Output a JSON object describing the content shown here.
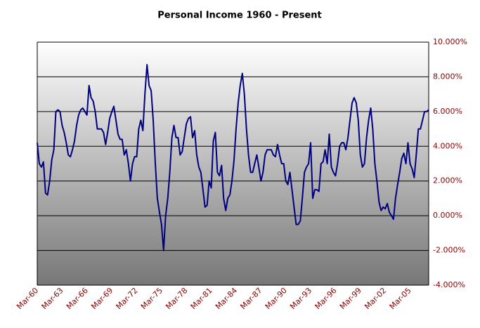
{
  "chart_data": {
    "type": "line",
    "title": "Personal Income 1960 - Present",
    "categories": [
      "Mar-60",
      null,
      null,
      null,
      null,
      null,
      null,
      null,
      null,
      null,
      null,
      null,
      "Mar-63",
      null,
      null,
      null,
      null,
      null,
      null,
      null,
      null,
      null,
      null,
      null,
      "Mar-66",
      null,
      null,
      null,
      null,
      null,
      null,
      null,
      null,
      null,
      null,
      null,
      "Mar-69",
      null,
      null,
      null,
      null,
      null,
      null,
      null,
      null,
      null,
      null,
      null,
      "Mar-72",
      null,
      null,
      null,
      null,
      null,
      null,
      null,
      null,
      null,
      null,
      null,
      "Mar-75",
      null,
      null,
      null,
      null,
      null,
      null,
      null,
      null,
      null,
      null,
      null,
      "Mar-78",
      null,
      null,
      null,
      null,
      null,
      null,
      null,
      null,
      null,
      null,
      null,
      "Mar-81",
      null,
      null,
      null,
      null,
      null,
      null,
      null,
      null,
      null,
      null,
      null,
      "Mar-84",
      null,
      null,
      null,
      null,
      null,
      null,
      null,
      null,
      null,
      null,
      null,
      "Mar-87",
      null,
      null,
      null,
      null,
      null,
      null,
      null,
      null,
      null,
      null,
      null,
      "Mar-90",
      null,
      null,
      null,
      null,
      null,
      null,
      null,
      null,
      null,
      null,
      null,
      "Mar-93",
      null,
      null,
      null,
      null,
      null,
      null,
      null,
      null,
      null,
      null,
      null,
      "Mar-96",
      null,
      null,
      null,
      null,
      null,
      null,
      null,
      null,
      null,
      null,
      null,
      "Mar-99",
      null,
      null,
      null,
      null,
      null,
      null,
      null,
      null,
      null,
      null,
      null,
      "Mar-02",
      null,
      null,
      null,
      null,
      null,
      null,
      null,
      null,
      null,
      null,
      null,
      "Mar-05",
      null,
      null,
      null,
      null,
      null,
      null,
      null,
      null,
      null
    ],
    "series": [
      {
        "color": "#000080",
        "values": [
          4.2,
          3.0,
          2.8,
          3.1,
          1.3,
          1.2,
          2.0,
          3.2,
          3.8,
          6.0,
          6.1,
          6.0,
          5.2,
          4.8,
          4.2,
          3.5,
          3.4,
          3.8,
          4.3,
          5.2,
          5.8,
          6.1,
          6.2,
          6.0,
          5.8,
          7.5,
          6.8,
          6.6,
          6.0,
          5.0,
          5.0,
          5.0,
          4.8,
          4.1,
          4.8,
          5.6,
          6.0,
          6.3,
          5.5,
          4.7,
          4.4,
          4.4,
          3.5,
          3.8,
          3.0,
          2.0,
          3.0,
          3.4,
          3.4,
          5.0,
          5.5,
          4.9,
          7.0,
          8.7,
          7.5,
          7.2,
          5.5,
          3.0,
          1.0,
          0.2,
          -0.5,
          -2.0,
          0.0,
          1.0,
          2.5,
          4.5,
          5.2,
          4.5,
          4.5,
          3.5,
          3.7,
          4.5,
          5.3,
          5.6,
          5.7,
          4.5,
          4.9,
          3.5,
          2.8,
          2.5,
          1.5,
          0.5,
          0.6,
          2.0,
          1.6,
          4.3,
          4.8,
          2.5,
          2.3,
          2.9,
          1.0,
          0.3,
          1.0,
          1.2,
          2.0,
          3.2,
          5.0,
          6.5,
          7.5,
          8.2,
          7.0,
          5.0,
          3.5,
          2.5,
          2.5,
          3.0,
          3.5,
          2.8,
          2.0,
          2.5,
          3.5,
          3.8,
          3.8,
          3.8,
          3.5,
          3.4,
          4.1,
          3.5,
          3.0,
          3.0,
          2.0,
          1.8,
          2.5,
          1.5,
          0.5,
          -0.5,
          -0.5,
          -0.3,
          1.0,
          2.5,
          2.8,
          3.0,
          4.2,
          1.0,
          1.5,
          1.5,
          1.4,
          3.0,
          3.1,
          3.8,
          3.0,
          4.7,
          2.8,
          2.5,
          2.3,
          3.0,
          4.0,
          4.2,
          4.2,
          3.8,
          4.5,
          5.5,
          6.5,
          6.8,
          6.5,
          5.5,
          3.5,
          2.8,
          3.0,
          4.5,
          5.5,
          6.2,
          5.0,
          3.0,
          2.0,
          0.8,
          0.3,
          0.5,
          0.4,
          0.7,
          0.2,
          0.0,
          -0.2,
          1.0,
          1.8,
          2.5,
          3.3,
          3.6,
          3.0,
          4.2,
          3.0,
          2.7,
          2.2,
          3.5,
          5.0,
          5.0,
          5.5,
          6.0,
          6.0,
          6.1
        ]
      }
    ],
    "ylim": [
      -4,
      10
    ],
    "yticks": [
      {
        "value": -4,
        "label": "-4.000%"
      },
      {
        "value": -2,
        "label": "-2.000%"
      },
      {
        "value": 0,
        "label": "0.000%"
      },
      {
        "value": 2,
        "label": "2.000%"
      },
      {
        "value": 4,
        "label": "4.000%"
      },
      {
        "value": 6,
        "label": "6.000%"
      },
      {
        "value": 8,
        "label": "8.000%"
      },
      {
        "value": 10,
        "label": "10.000%"
      }
    ],
    "grid": true
  }
}
